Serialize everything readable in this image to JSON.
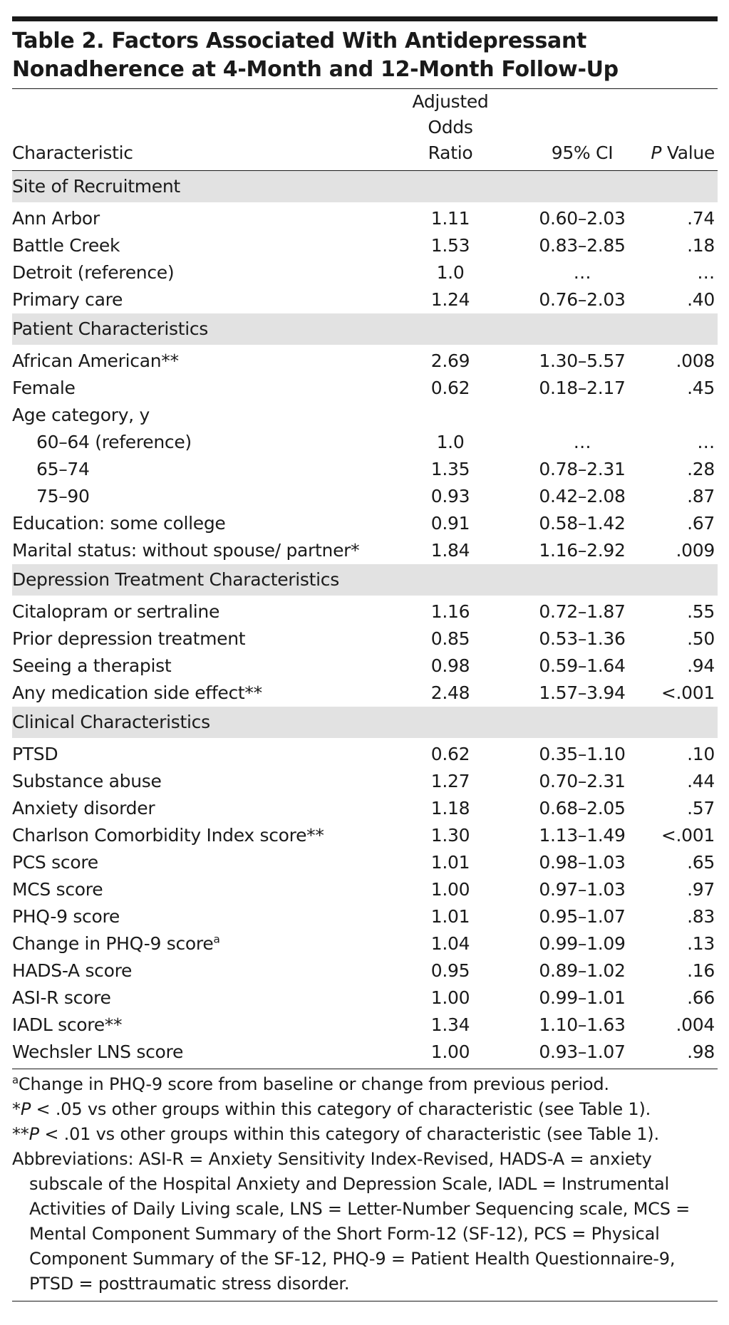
{
  "title": "Table 2. Factors Associated With Antidepressant Nonadherence at 4-Month and 12-Month Follow-Up",
  "header": {
    "characteristic": "Characteristic",
    "odds_ratio": "Adjusted Odds Ratio",
    "ci": "95% CI",
    "p_italic": "P",
    "p_text": "Value"
  },
  "sections": [
    {
      "title": "Site of Recruitment",
      "rows": [
        {
          "label": "Ann Arbor",
          "or": "1.11",
          "ci": "0.60–2.03",
          "p": ".74"
        },
        {
          "label": "Battle Creek",
          "or": "1.53",
          "ci": "0.83–2.85",
          "p": ".18"
        },
        {
          "label": "Detroit (reference)",
          "or": "1.0",
          "ci": "…",
          "p": "…"
        },
        {
          "label": "Primary care",
          "or": "1.24",
          "ci": "0.76–2.03",
          "p": ".40"
        }
      ]
    },
    {
      "title": "Patient Characteristics",
      "rows": [
        {
          "label": "African American**",
          "or": "2.69",
          "ci": "1.30–5.57",
          "p": ".008"
        },
        {
          "label": "Female",
          "or": "0.62",
          "ci": "0.18–2.17",
          "p": ".45"
        },
        {
          "label": "Age category, y"
        },
        {
          "label": "60–64 (reference)",
          "indent": true,
          "or": "1.0",
          "ci": "…",
          "p": "…"
        },
        {
          "label": "65–74",
          "indent": true,
          "or": "1.35",
          "ci": "0.78–2.31",
          "p": ".28"
        },
        {
          "label": "75–90",
          "indent": true,
          "or": "0.93",
          "ci": "0.42–2.08",
          "p": ".87"
        },
        {
          "label": "Education: some college",
          "or": "0.91",
          "ci": "0.58–1.42",
          "p": ".67"
        },
        {
          "label": "Marital status: without spouse/ partner*",
          "or": "1.84",
          "ci": "1.16–2.92",
          "p": ".009"
        }
      ]
    },
    {
      "title": "Depression Treatment Characteristics",
      "rows": [
        {
          "label": "Citalopram or sertraline",
          "or": "1.16",
          "ci": "0.72–1.87",
          "p": ".55"
        },
        {
          "label": "Prior depression treatment",
          "or": "0.85",
          "ci": "0.53–1.36",
          "p": ".50"
        },
        {
          "label": "Seeing a therapist",
          "or": "0.98",
          "ci": "0.59–1.64",
          "p": ".94"
        },
        {
          "label": "Any medication side effect**",
          "or": "2.48",
          "ci": "1.57–3.94",
          "p": "<.001"
        }
      ]
    },
    {
      "title": "Clinical Characteristics",
      "rows": [
        {
          "label": "PTSD",
          "or": "0.62",
          "ci": "0.35–1.10",
          "p": ".10"
        },
        {
          "label": "Substance abuse",
          "or": "1.27",
          "ci": "0.70–2.31",
          "p": ".44"
        },
        {
          "label": "Anxiety disorder",
          "or": "1.18",
          "ci": "0.68–2.05",
          "p": ".57"
        },
        {
          "label": "Charlson Comorbidity Index score**",
          "or": "1.30",
          "ci": "1.13–1.49",
          "p": "<.001"
        },
        {
          "label": "PCS score",
          "or": "1.01",
          "ci": "0.98–1.03",
          "p": ".65"
        },
        {
          "label": "MCS score",
          "or": "1.00",
          "ci": "0.97–1.03",
          "p": ".97"
        },
        {
          "label": "PHQ-9 score",
          "or": "1.01",
          "ci": "0.95–1.07",
          "p": ".83"
        },
        {
          "label": "Change in PHQ-9 score",
          "sup": "a",
          "or": "1.04",
          "ci": "0.99–1.09",
          "p": ".13"
        },
        {
          "label": "HADS-A score",
          "or": "0.95",
          "ci": "0.89–1.02",
          "p": ".16"
        },
        {
          "label": "ASI-R score",
          "or": "1.00",
          "ci": "0.99–1.01",
          "p": ".66"
        },
        {
          "label": "IADL score**",
          "or": "1.34",
          "ci": "1.10–1.63",
          "p": ".004"
        },
        {
          "label": "Wechsler LNS score",
          "or": "1.00",
          "ci": "0.93–1.07",
          "p": ".98"
        }
      ]
    }
  ],
  "footnotes": [
    [
      {
        "text": "a",
        "style": "sup"
      },
      {
        "text": "Change in PHQ-9 score from baseline or change from previous period."
      }
    ],
    [
      {
        "text": "*"
      },
      {
        "text": "P",
        "style": "italic"
      },
      {
        "text": " < .05 vs other groups within this category of characteristic (see Table 1)."
      }
    ],
    [
      {
        "text": "**"
      },
      {
        "text": "P",
        "style": "italic"
      },
      {
        "text": " < .01 vs other groups within this category of characteristic (see Table 1)."
      }
    ],
    [
      {
        "text": "Abbreviations: ASI-R = Anxiety Sensitivity Index-Revised, HADS-A = anxiety subscale of the Hospital Anxiety and Depression Scale, IADL = Instrumental Activities of Daily Living scale, LNS = Letter-Number Sequencing scale, MCS = Mental Component Summary of the Short Form-12 (SF-12), PCS = Physical Component Summary of the SF-12, PHQ-9 = Patient Health Questionnaire-9, PTSD = posttraumatic stress disorder."
      }
    ]
  ]
}
